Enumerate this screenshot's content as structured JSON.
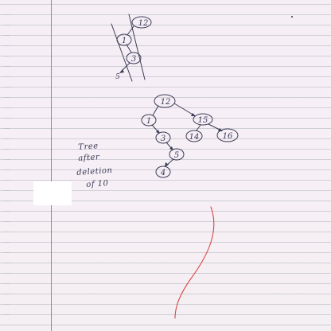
{
  "top_tree": {
    "nodes": [
      "12",
      "1",
      "3"
    ],
    "leaf": "5"
  },
  "main_tree": {
    "nodes": [
      "12",
      "1",
      "15",
      "3",
      "14",
      "16",
      "5",
      "4"
    ]
  },
  "caption": {
    "line1": "Tree",
    "line2": "after",
    "line3": "deletion",
    "line4": "of 10"
  },
  "colors": {
    "ink": "#3a3d56",
    "red_ink": "#d84848",
    "paper": "#f6eef5",
    "rule": "#cfcfd6",
    "margin": "#8c8c96"
  }
}
